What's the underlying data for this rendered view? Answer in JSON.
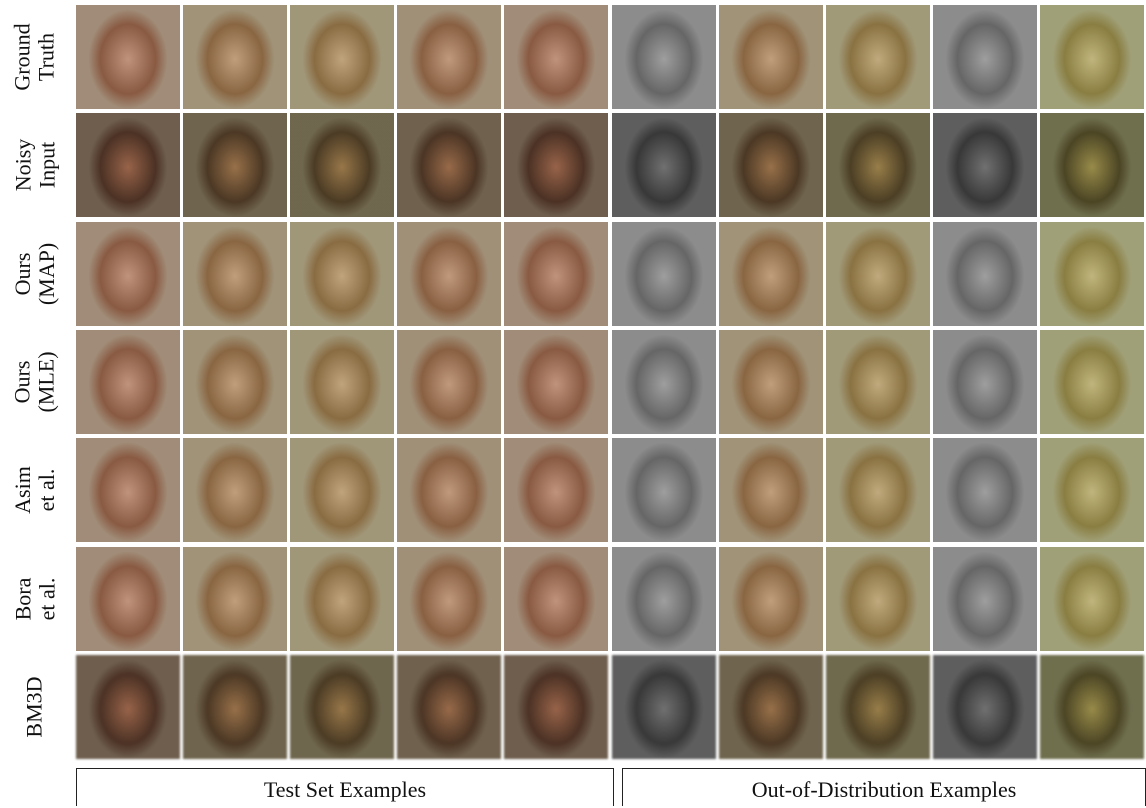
{
  "rows": [
    {
      "label": [
        "Ground",
        "Truth"
      ]
    },
    {
      "label": [
        "Noisy",
        "Input"
      ]
    },
    {
      "label": [
        "Ours",
        "(MAP)"
      ]
    },
    {
      "label": [
        "Ours",
        "(MLE)"
      ]
    },
    {
      "label": [
        "Asim",
        "et al."
      ]
    },
    {
      "label": [
        "Bora",
        "et al."
      ]
    },
    {
      "label": [
        "BM3D"
      ]
    }
  ],
  "groups": [
    {
      "label": "Test Set Examples"
    },
    {
      "label": "Out-of-Distribution Examples"
    }
  ]
}
